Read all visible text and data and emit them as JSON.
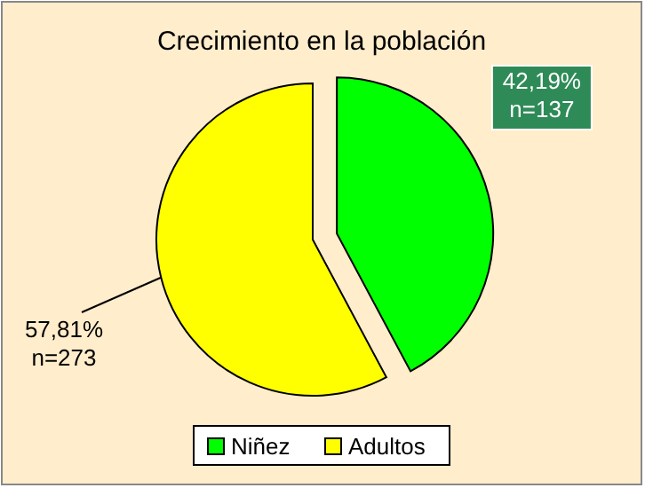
{
  "chart_data": {
    "type": "pie",
    "title": "Crecimiento en la población",
    "categories": [
      "Niñez",
      "Adultos"
    ],
    "values": [
      42.19,
      57.81
    ],
    "colors": [
      "#00ff00",
      "#ffff00"
    ],
    "value_labels": [
      "42,19%\nn=137",
      "57,81%\nn=273"
    ],
    "legend": "bottom"
  }
}
